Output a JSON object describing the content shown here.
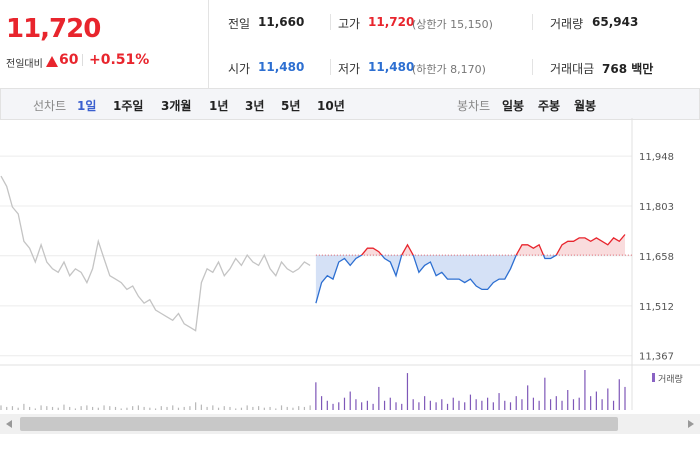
{
  "header": {
    "price": "11,720",
    "change_label": "전일대비",
    "change": "60",
    "change_rate": "+0.51%",
    "stats": [
      {
        "label": "전일",
        "value": "11,660"
      },
      {
        "label": "고가",
        "value": "11,720",
        "note": "(상한가 15,150)"
      },
      {
        "label": "거래량",
        "value": "65,943"
      },
      {
        "label": "시가",
        "value": "11,480"
      },
      {
        "label": "저가",
        "value": "11,480",
        "note": "(하한가 8,170)"
      },
      {
        "label": "거래대금",
        "value": "768 백만"
      }
    ]
  },
  "tabs": {
    "line_label": "선차트",
    "line_periods": [
      "1일",
      "1주일",
      "3개월",
      "1년",
      "3년",
      "5년",
      "10년"
    ],
    "candle_label": "봉차트",
    "candle_periods": [
      "일봉",
      "주봉",
      "월봉"
    ]
  },
  "chart_data": {
    "type": "line",
    "ylim": [
      11340,
      12030
    ],
    "yticks": [
      {
        "value": 11948,
        "label": "11,948"
      },
      {
        "value": 11803,
        "label": "11,803"
      },
      {
        "value": 11658,
        "label": "11,658"
      },
      {
        "value": 11512,
        "label": "11,512"
      },
      {
        "value": 11367,
        "label": "11,367"
      }
    ],
    "grid": true,
    "baseline": 11660,
    "baseline_color": "#e0636b",
    "series": [
      {
        "color": "#c4c4c4",
        "values": [
          11890,
          11860,
          11800,
          11780,
          11700,
          11680,
          11640,
          11690,
          11640,
          11620,
          11610,
          11640,
          11600,
          11620,
          11610,
          11580,
          11620,
          11700,
          11650,
          11600,
          11590,
          11580,
          11560,
          11570,
          11540,
          11520,
          11530,
          11500,
          11490,
          11480,
          11470,
          11490,
          11460,
          11450,
          11440,
          11580,
          11620,
          11610,
          11640,
          11600,
          11620,
          11650,
          11630,
          11660,
          11640,
          11630,
          11660,
          11620,
          11600,
          11640,
          11620,
          11610,
          11620,
          11640,
          11630,
          null,
          null,
          null,
          null,
          null,
          null,
          null,
          null,
          null,
          null,
          null,
          null,
          null,
          null,
          null,
          null,
          null,
          null,
          null,
          null,
          null,
          null,
          null,
          null,
          null,
          null,
          null,
          null,
          null,
          null,
          null,
          null,
          null,
          null,
          null,
          null,
          null,
          null,
          null,
          null,
          null,
          null,
          null,
          null,
          null,
          null,
          null,
          null,
          null,
          null,
          null,
          null,
          null,
          null,
          null
        ]
      },
      {
        "color": "#2d6fd1",
        "color_up": "#e8252d",
        "fill": "#b9cdf0",
        "fill_up": "#f5c4c6",
        "values": [
          null,
          null,
          null,
          null,
          null,
          null,
          null,
          null,
          null,
          null,
          null,
          null,
          null,
          null,
          null,
          null,
          null,
          null,
          null,
          null,
          null,
          null,
          null,
          null,
          null,
          null,
          null,
          null,
          null,
          null,
          null,
          null,
          null,
          null,
          null,
          null,
          null,
          null,
          null,
          null,
          null,
          null,
          null,
          null,
          null,
          null,
          null,
          null,
          null,
          null,
          null,
          null,
          null,
          null,
          null,
          11520,
          11580,
          11600,
          11590,
          11640,
          11650,
          11630,
          11650,
          11660,
          11680,
          11680,
          11670,
          11650,
          11640,
          11600,
          11660,
          11690,
          11660,
          11610,
          11630,
          11640,
          11600,
          11610,
          11590,
          11590,
          11590,
          11580,
          11590,
          11570,
          11560,
          11560,
          11580,
          11590,
          11590,
          11620,
          11660,
          11690,
          11690,
          11680,
          11690,
          11650,
          11650,
          11660,
          11690,
          11700,
          11700,
          11710,
          11710,
          11700,
          11710,
          11700,
          11690,
          11710,
          11700,
          11720
        ]
      }
    ],
    "volume": {
      "name": "거래량",
      "legend_color": "#8a63c4",
      "series": [
        {
          "color": "#b8b8b8",
          "values": [
            300,
            200,
            250,
            150,
            400,
            200,
            100,
            300,
            250,
            200,
            150,
            350,
            200,
            100,
            250,
            300,
            200,
            150,
            300,
            250,
            200,
            100,
            150,
            250,
            300,
            200,
            150,
            100,
            250,
            200,
            300,
            150,
            200,
            250,
            500,
            350,
            200,
            300,
            150,
            250,
            200,
            100,
            150,
            300,
            200,
            250,
            150,
            200,
            100,
            300,
            200,
            150,
            250,
            200,
            300,
            null,
            null,
            null,
            null,
            null,
            null,
            null,
            null,
            null,
            null,
            null,
            null,
            null,
            null,
            null,
            null,
            null,
            null,
            null,
            null,
            null,
            null,
            null,
            null,
            null,
            null,
            null,
            null,
            null,
            null,
            null,
            null,
            null,
            null,
            null,
            null,
            null,
            null,
            null,
            null,
            null,
            null,
            null,
            null,
            null,
            null,
            null,
            null,
            null,
            null,
            null,
            null,
            null,
            null,
            null
          ]
        },
        {
          "color": "#7e57b8",
          "values": [
            null,
            null,
            null,
            null,
            null,
            null,
            null,
            null,
            null,
            null,
            null,
            null,
            null,
            null,
            null,
            null,
            null,
            null,
            null,
            null,
            null,
            null,
            null,
            null,
            null,
            null,
            null,
            null,
            null,
            null,
            null,
            null,
            null,
            null,
            null,
            null,
            null,
            null,
            null,
            null,
            null,
            null,
            null,
            null,
            null,
            null,
            null,
            null,
            null,
            null,
            null,
            null,
            null,
            null,
            null,
            1800,
            900,
            600,
            400,
            500,
            800,
            1200,
            700,
            500,
            600,
            400,
            1500,
            600,
            800,
            500,
            400,
            2400,
            700,
            500,
            900,
            600,
            500,
            700,
            400,
            800,
            600,
            500,
            1000,
            700,
            600,
            800,
            500,
            1100,
            600,
            500,
            900,
            700,
            1600,
            800,
            600,
            2100,
            700,
            900,
            600,
            1300,
            700,
            800,
            2600,
            900,
            1200,
            700,
            1400,
            600,
            2000,
            1500
          ]
        }
      ]
    }
  }
}
